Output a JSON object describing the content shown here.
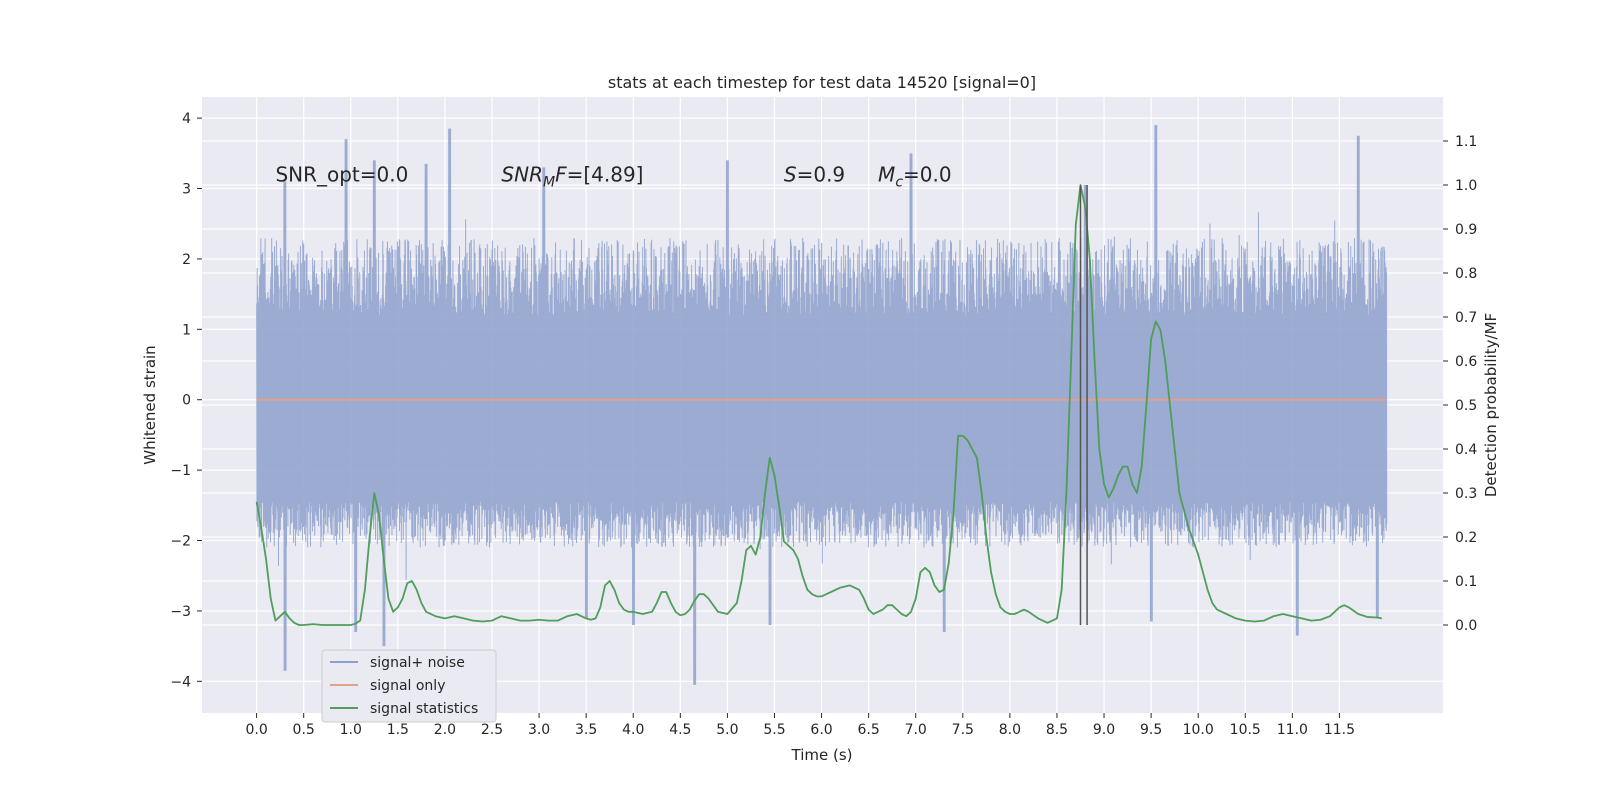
{
  "chart_data": {
    "type": "line",
    "title": "stats at each timestep for test data 14520 [signal=0]",
    "xlabel": "Time (s)",
    "ylabel": "Whitened strain",
    "y2label": "Detection probability/MF",
    "xlim": [
      -0.58,
      12.6
    ],
    "ylim": [
      -4.45,
      4.3
    ],
    "y2lim": [
      -0.2,
      1.2
    ],
    "xticks": [
      0.0,
      0.5,
      1.0,
      1.5,
      2.0,
      2.5,
      3.0,
      3.5,
      4.0,
      4.5,
      5.0,
      5.5,
      6.0,
      6.5,
      7.0,
      7.5,
      8.0,
      8.5,
      9.0,
      9.5,
      10.0,
      10.5,
      11.0,
      11.5
    ],
    "xtick_labels": [
      "0.0",
      "0.5",
      "1.0",
      "1.5",
      "2.0",
      "2.5",
      "3.0",
      "3.5",
      "4.0",
      "4.5",
      "5.0",
      "5.5",
      "6.0",
      "6.5",
      "7.0",
      "7.5",
      "8.0",
      "8.5",
      "9.0",
      "9.5",
      "10.0",
      "10.5",
      "11.0",
      "11.5"
    ],
    "yticks": [
      -4,
      -3,
      -2,
      -1,
      0,
      1,
      2,
      3,
      4
    ],
    "ytick_labels": [
      "−4",
      "−3",
      "−2",
      "−1",
      "0",
      "1",
      "2",
      "3",
      "4"
    ],
    "y2ticks": [
      0.0,
      0.1,
      0.2,
      0.3,
      0.4,
      0.5,
      0.6,
      0.7,
      0.8,
      0.9,
      1.0,
      1.1
    ],
    "y2tick_labels": [
      "0.0",
      "0.1",
      "0.2",
      "0.3",
      "0.4",
      "0.5",
      "0.6",
      "0.7",
      "0.8",
      "0.9",
      "1.0",
      "1.1"
    ],
    "grid": true,
    "legend": {
      "location": "lower-left",
      "entries": [
        {
          "label": "signal+ noise",
          "color": "#8da0cb"
        },
        {
          "label": "signal only",
          "color": "#e5a08a"
        },
        {
          "label": "signal statistics",
          "color": "#4f9e5a"
        }
      ]
    },
    "annotations": [
      {
        "id": "snr-opt",
        "x": 0.2,
        "y": 3.1,
        "parts": [
          {
            "t": "SNR_opt=0.0"
          }
        ]
      },
      {
        "id": "snr-mf",
        "x": 2.6,
        "y": 3.1,
        "parts": [
          {
            "t": "SNR",
            "i": true
          },
          {
            "t": "M",
            "i": true,
            "sub": true
          },
          {
            "t": "F",
            "i": true
          },
          {
            "t": "=[4.89]"
          }
        ]
      },
      {
        "id": "s-value",
        "x": 5.6,
        "y": 3.1,
        "parts": [
          {
            "t": "S",
            "i": true
          },
          {
            "t": "=0.9"
          }
        ]
      },
      {
        "id": "mc-value",
        "x": 6.6,
        "y": 3.1,
        "parts": [
          {
            "t": "M",
            "i": true
          },
          {
            "t": "c",
            "i": true,
            "sub": true
          },
          {
            "t": "=0.0"
          }
        ]
      }
    ],
    "series": [
      {
        "name": "signal+ noise",
        "axis": "left",
        "color": "#8da0cb",
        "style": "dense-noise",
        "x_start": 0.0,
        "x_end": 12.0,
        "core_range": [
          -1.45,
          1.2
        ],
        "typical_range": [
          -2.1,
          2.3
        ],
        "peaks": [
          [
            0.3,
            3.1
          ],
          [
            0.95,
            3.7
          ],
          [
            1.25,
            3.4
          ],
          [
            1.8,
            3.35
          ],
          [
            2.05,
            3.85
          ],
          [
            3.05,
            3.3
          ],
          [
            5.0,
            3.4
          ],
          [
            6.95,
            3.5
          ],
          [
            8.8,
            3.05
          ],
          [
            9.55,
            3.9
          ],
          [
            11.7,
            3.75
          ]
        ],
        "troughs": [
          [
            0.3,
            -3.85
          ],
          [
            1.05,
            -3.3
          ],
          [
            1.35,
            -3.5
          ],
          [
            3.5,
            -3.1
          ],
          [
            4.0,
            -3.2
          ],
          [
            4.65,
            -4.05
          ],
          [
            5.45,
            -3.2
          ],
          [
            7.3,
            -3.3
          ],
          [
            9.5,
            -3.15
          ],
          [
            11.05,
            -3.35
          ],
          [
            11.9,
            -3.1
          ]
        ]
      },
      {
        "name": "signal only",
        "axis": "left",
        "color": "#e5a08a",
        "x": [
          0.0,
          12.0
        ],
        "y": [
          0.0,
          0.0
        ]
      },
      {
        "name": "signal statistics",
        "axis": "right",
        "color": "#4f9e5a",
        "x": [
          0.0,
          0.05,
          0.1,
          0.15,
          0.2,
          0.25,
          0.3,
          0.35,
          0.4,
          0.45,
          0.5,
          0.6,
          0.7,
          0.8,
          0.9,
          1.0,
          1.05,
          1.1,
          1.15,
          1.2,
          1.25,
          1.3,
          1.35,
          1.4,
          1.45,
          1.5,
          1.55,
          1.6,
          1.65,
          1.7,
          1.75,
          1.8,
          1.9,
          2.0,
          2.1,
          2.2,
          2.3,
          2.4,
          2.5,
          2.6,
          2.7,
          2.8,
          2.9,
          3.0,
          3.1,
          3.2,
          3.3,
          3.4,
          3.5,
          3.55,
          3.6,
          3.65,
          3.7,
          3.75,
          3.8,
          3.85,
          3.9,
          3.95,
          4.0,
          4.1,
          4.2,
          4.25,
          4.3,
          4.35,
          4.4,
          4.45,
          4.5,
          4.55,
          4.6,
          4.65,
          4.7,
          4.75,
          4.8,
          4.9,
          5.0,
          5.1,
          5.15,
          5.2,
          5.25,
          5.3,
          5.35,
          5.4,
          5.45,
          5.5,
          5.55,
          5.6,
          5.65,
          5.7,
          5.75,
          5.8,
          5.85,
          5.9,
          5.95,
          6.0,
          6.05,
          6.1,
          6.2,
          6.3,
          6.4,
          6.45,
          6.5,
          6.55,
          6.6,
          6.65,
          6.7,
          6.75,
          6.8,
          6.85,
          6.9,
          6.95,
          7.0,
          7.05,
          7.1,
          7.15,
          7.2,
          7.25,
          7.3,
          7.35,
          7.4,
          7.45,
          7.5,
          7.55,
          7.6,
          7.65,
          7.7,
          7.75,
          7.8,
          7.85,
          7.9,
          7.95,
          8.0,
          8.05,
          8.1,
          8.15,
          8.2,
          8.3,
          8.4,
          8.5,
          8.55,
          8.6,
          8.65,
          8.7,
          8.75,
          8.8,
          8.85,
          8.9,
          8.95,
          9.0,
          9.05,
          9.1,
          9.15,
          9.2,
          9.25,
          9.3,
          9.35,
          9.4,
          9.45,
          9.5,
          9.55,
          9.6,
          9.65,
          9.7,
          9.75,
          9.8,
          9.85,
          9.9,
          9.95,
          10.0,
          10.05,
          10.1,
          10.15,
          10.2,
          10.25,
          10.3,
          10.4,
          10.5,
          10.6,
          10.7,
          10.8,
          10.9,
          11.0,
          11.1,
          11.2,
          11.3,
          11.4,
          11.5,
          11.55,
          11.6,
          11.7,
          11.8,
          11.9,
          11.95
        ],
        "y": [
          0.28,
          0.22,
          0.15,
          0.06,
          0.01,
          0.02,
          0.03,
          0.015,
          0.005,
          0.0,
          0.0,
          0.002,
          0.0,
          0.0,
          0.0,
          0.0,
          0.003,
          0.01,
          0.08,
          0.2,
          0.3,
          0.25,
          0.15,
          0.06,
          0.03,
          0.04,
          0.06,
          0.095,
          0.1,
          0.08,
          0.05,
          0.03,
          0.02,
          0.015,
          0.02,
          0.015,
          0.01,
          0.008,
          0.01,
          0.02,
          0.015,
          0.01,
          0.01,
          0.012,
          0.01,
          0.01,
          0.02,
          0.025,
          0.015,
          0.012,
          0.015,
          0.04,
          0.09,
          0.1,
          0.08,
          0.05,
          0.035,
          0.03,
          0.03,
          0.025,
          0.03,
          0.05,
          0.075,
          0.075,
          0.05,
          0.03,
          0.022,
          0.025,
          0.035,
          0.055,
          0.07,
          0.07,
          0.06,
          0.03,
          0.025,
          0.05,
          0.1,
          0.17,
          0.18,
          0.16,
          0.2,
          0.3,
          0.38,
          0.34,
          0.27,
          0.19,
          0.18,
          0.17,
          0.15,
          0.11,
          0.08,
          0.07,
          0.065,
          0.065,
          0.07,
          0.075,
          0.085,
          0.09,
          0.08,
          0.06,
          0.035,
          0.025,
          0.03,
          0.035,
          0.045,
          0.045,
          0.035,
          0.025,
          0.02,
          0.03,
          0.06,
          0.12,
          0.13,
          0.12,
          0.09,
          0.075,
          0.08,
          0.14,
          0.25,
          0.43,
          0.43,
          0.42,
          0.4,
          0.38,
          0.3,
          0.2,
          0.12,
          0.07,
          0.04,
          0.03,
          0.025,
          0.025,
          0.03,
          0.035,
          0.03,
          0.015,
          0.005,
          0.015,
          0.08,
          0.3,
          0.6,
          0.91,
          1.0,
          0.95,
          0.83,
          0.6,
          0.4,
          0.32,
          0.29,
          0.31,
          0.34,
          0.36,
          0.36,
          0.32,
          0.3,
          0.36,
          0.5,
          0.65,
          0.69,
          0.67,
          0.6,
          0.5,
          0.4,
          0.3,
          0.26,
          0.22,
          0.19,
          0.16,
          0.12,
          0.08,
          0.05,
          0.035,
          0.03,
          0.025,
          0.015,
          0.01,
          0.008,
          0.01,
          0.02,
          0.025,
          0.02,
          0.015,
          0.01,
          0.012,
          0.02,
          0.04,
          0.045,
          0.04,
          0.025,
          0.018,
          0.017,
          0.015
        ]
      }
    ],
    "vertical_markers": [
      {
        "x": 8.75,
        "y_range": [
          0.0,
          1.0
        ],
        "color": "#555555"
      },
      {
        "x": 8.82,
        "y_range": [
          0.0,
          1.0
        ],
        "color": "#555555"
      }
    ]
  }
}
